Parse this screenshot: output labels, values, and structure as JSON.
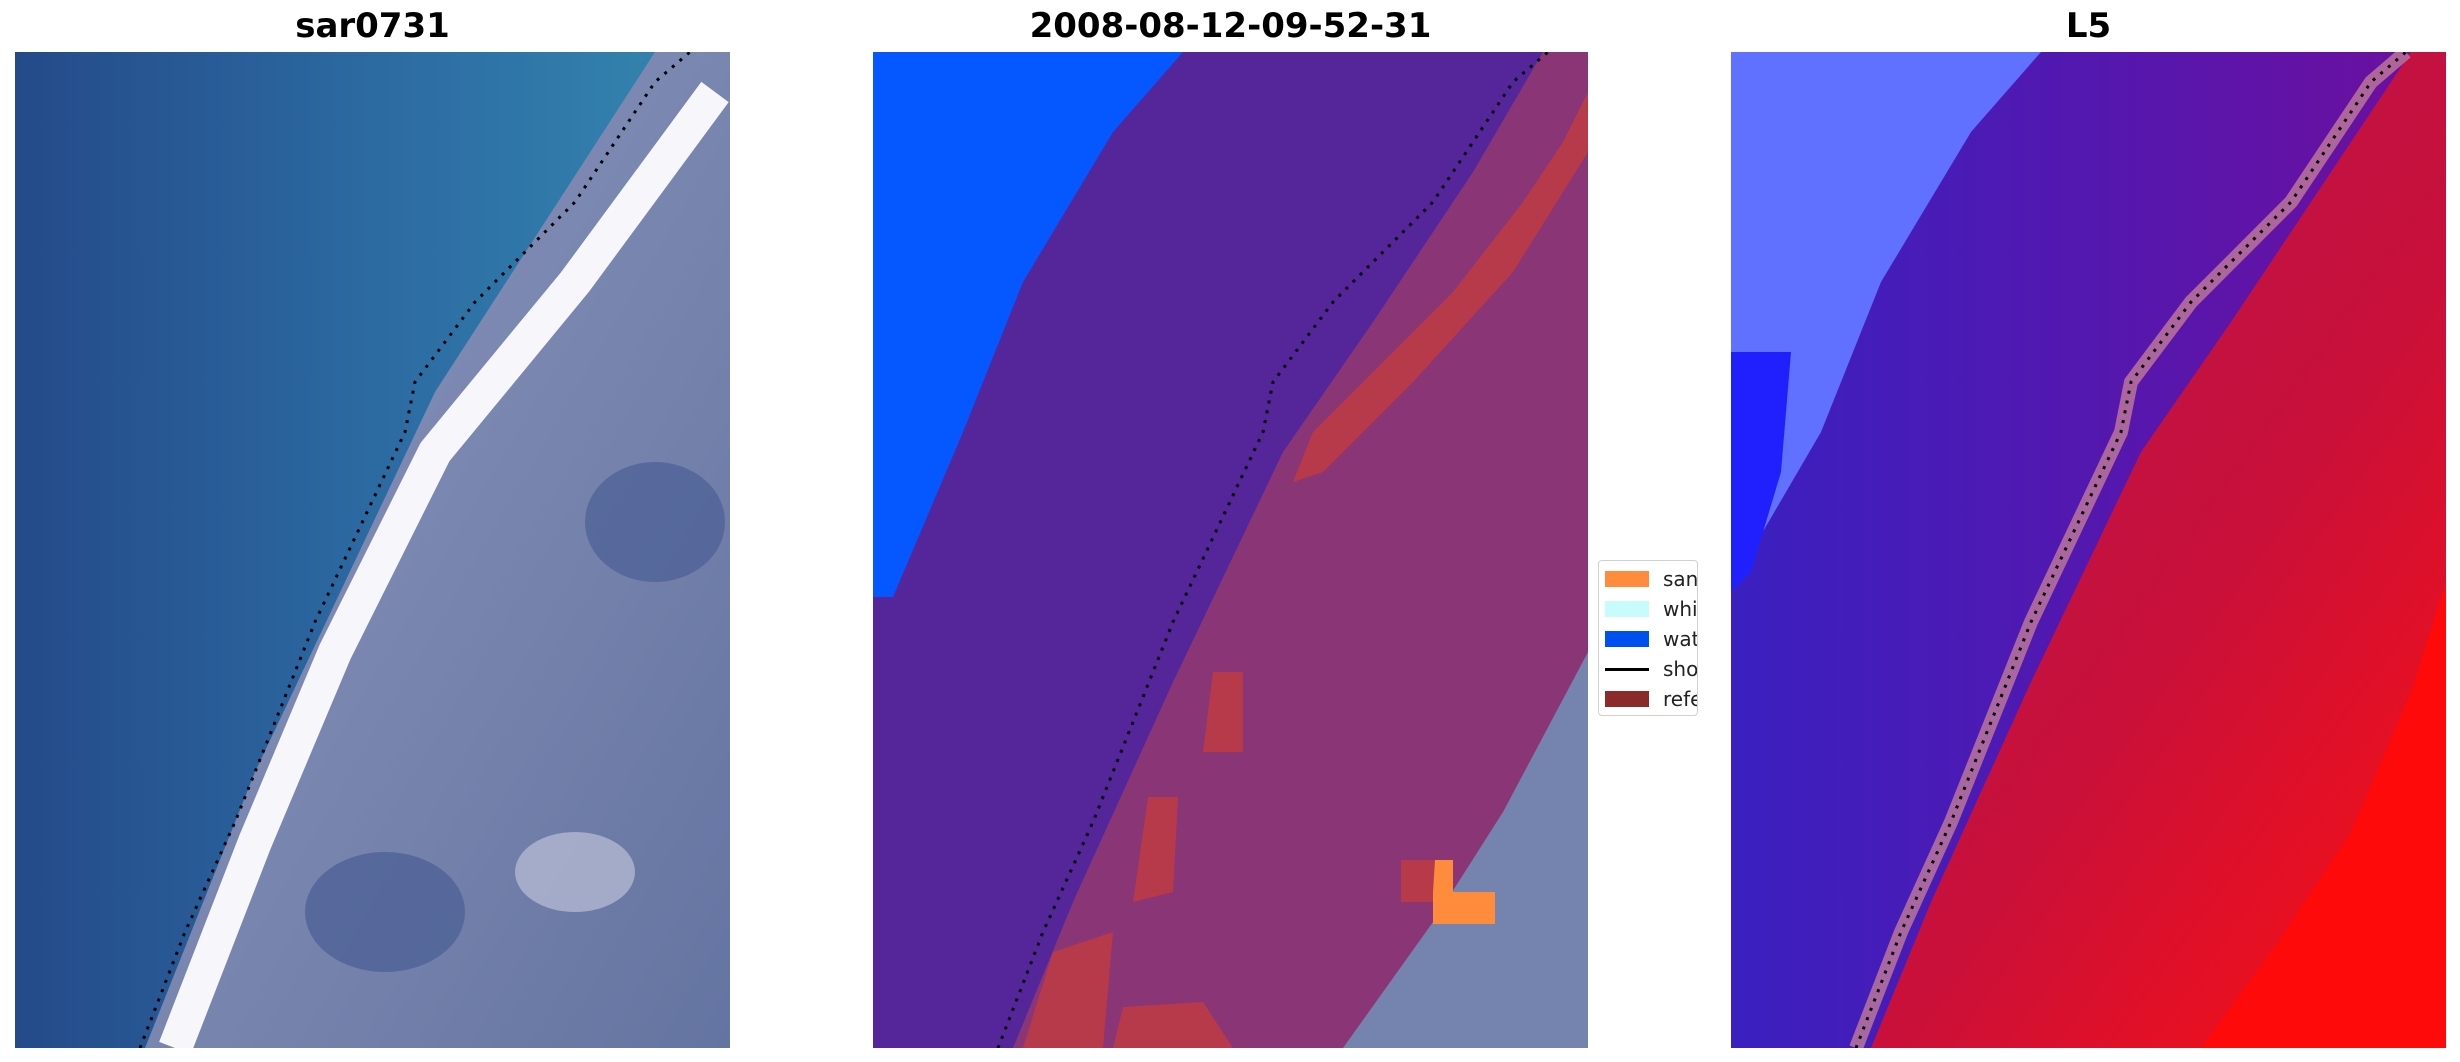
{
  "panels": [
    {
      "title": "sar0731"
    },
    {
      "title": "2008-08-12-09-52-31"
    },
    {
      "title": "L5"
    }
  ],
  "legend": {
    "items": [
      {
        "label": "sand",
        "color": "#ff8c3c",
        "kind": "patch"
      },
      {
        "label": "whitew",
        "color": "#c8fcfc",
        "kind": "patch"
      },
      {
        "label": "water",
        "color": "#0050f0",
        "kind": "patch"
      },
      {
        "label": "shorel",
        "color": "#000000",
        "kind": "line"
      },
      {
        "label": "referer",
        "color": "#8b2a2a",
        "kind": "patch"
      }
    ]
  },
  "colors": {
    "ocean_deep": "#254b8c",
    "ocean_shallow": "#2f78a8",
    "foam": "#f4f4fa",
    "land": "#6f7fa8",
    "classified_water": "#55259a",
    "classified_land": "#8a3575",
    "classified_sand": "#b73a4a",
    "water_label": "#0558ff",
    "map_water": "#5a10a8",
    "map_land": "#c0103a",
    "map_bright_water": "#6a70ff",
    "map_hot": "#ff0a0a"
  }
}
